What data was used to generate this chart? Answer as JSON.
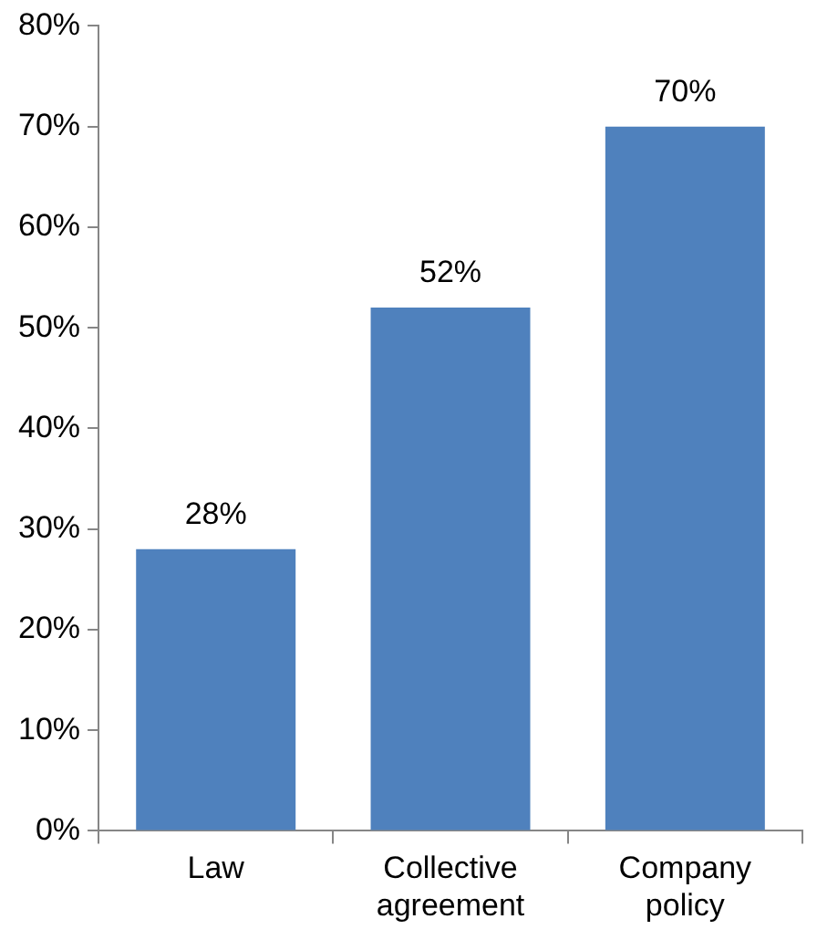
{
  "chart_data": {
    "type": "bar",
    "categories": [
      "Law",
      "Collective agreement",
      "Company policy"
    ],
    "values": [
      28,
      52,
      70
    ],
    "color": "#4f81bd",
    "ylim": [
      0,
      80
    ],
    "yticks": [
      {
        "value": 0,
        "label": "0%"
      },
      {
        "value": 10,
        "label": "10%"
      },
      {
        "value": 20,
        "label": "20%"
      },
      {
        "value": 30,
        "label": "30%"
      },
      {
        "value": 40,
        "label": "40%"
      },
      {
        "value": 50,
        "label": "50%"
      },
      {
        "value": 60,
        "label": "60%"
      },
      {
        "value": 70,
        "label": "70%"
      },
      {
        "value": 80,
        "label": "80%"
      }
    ],
    "value_labels": [
      "28%",
      "52%",
      "70%"
    ],
    "grid": false,
    "legend": false
  }
}
